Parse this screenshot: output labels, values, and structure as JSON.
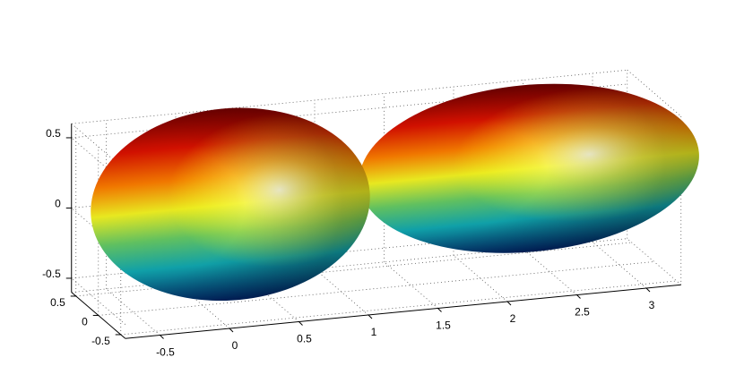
{
  "chart_data": {
    "type": "surface",
    "xlim": [
      -0.75,
      3.25
    ],
    "xticks": [
      -0.5,
      0,
      0.5,
      1,
      1.5,
      2,
      2.5,
      3
    ],
    "ylim": [
      -0.6,
      0.6
    ],
    "yticks": [
      -0.5,
      0,
      0.5
    ],
    "zlim": [
      -0.6,
      0.6
    ],
    "zticks": [
      -0.5,
      0,
      0.5
    ],
    "grid": true,
    "ellipsoids": [
      {
        "center": [
          0.2,
          0,
          0.1
        ],
        "radii": [
          1.0,
          0.45,
          0.68
        ]
      },
      {
        "center": [
          2.35,
          0,
          0.15
        ],
        "radii": [
          1.22,
          0.45,
          0.59
        ]
      }
    ]
  }
}
